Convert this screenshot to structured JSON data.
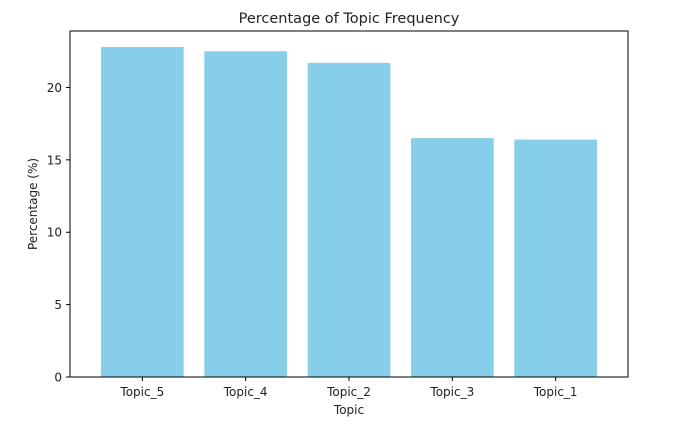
{
  "chart_data": {
    "type": "bar",
    "title": "Percentage of Topic Frequency",
    "xlabel": "Topic",
    "ylabel": "Percentage (%)",
    "categories": [
      "Topic_5",
      "Topic_4",
      "Topic_2",
      "Topic_3",
      "Topic_1"
    ],
    "values": [
      22.8,
      22.5,
      21.7,
      16.5,
      16.4
    ],
    "ylim": [
      0,
      23.9
    ],
    "yticks": [
      0,
      5,
      10,
      15,
      20
    ],
    "bar_color": "#87CEEB",
    "grid": false,
    "legend": "none"
  }
}
